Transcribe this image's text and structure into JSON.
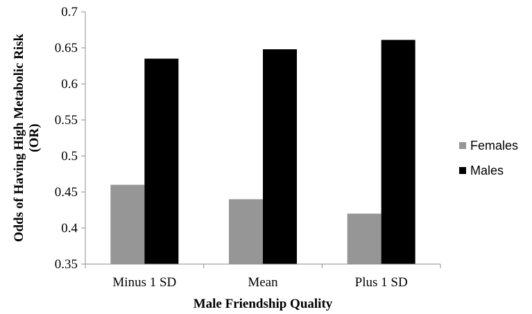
{
  "chart_data": {
    "type": "bar",
    "categories": [
      "Minus 1 SD",
      "Mean",
      "Plus 1 SD"
    ],
    "series": [
      {
        "name": "Females",
        "values": [
          0.46,
          0.44,
          0.42
        ],
        "color": "#969696"
      },
      {
        "name": "Males",
        "values": [
          0.635,
          0.648,
          0.661
        ],
        "color": "#000000"
      }
    ],
    "xlabel": "Male Friendship Quality",
    "ylabel_line1": "Odds of Having High Metabolic Risk",
    "ylabel_line2": "(OR)",
    "ylim": [
      0.35,
      0.7
    ],
    "yticks": [
      "0.35",
      "0.4",
      "0.45",
      "0.5",
      "0.55",
      "0.6",
      "0.65",
      "0.7"
    ],
    "grid": false,
    "legend_position": "right"
  }
}
